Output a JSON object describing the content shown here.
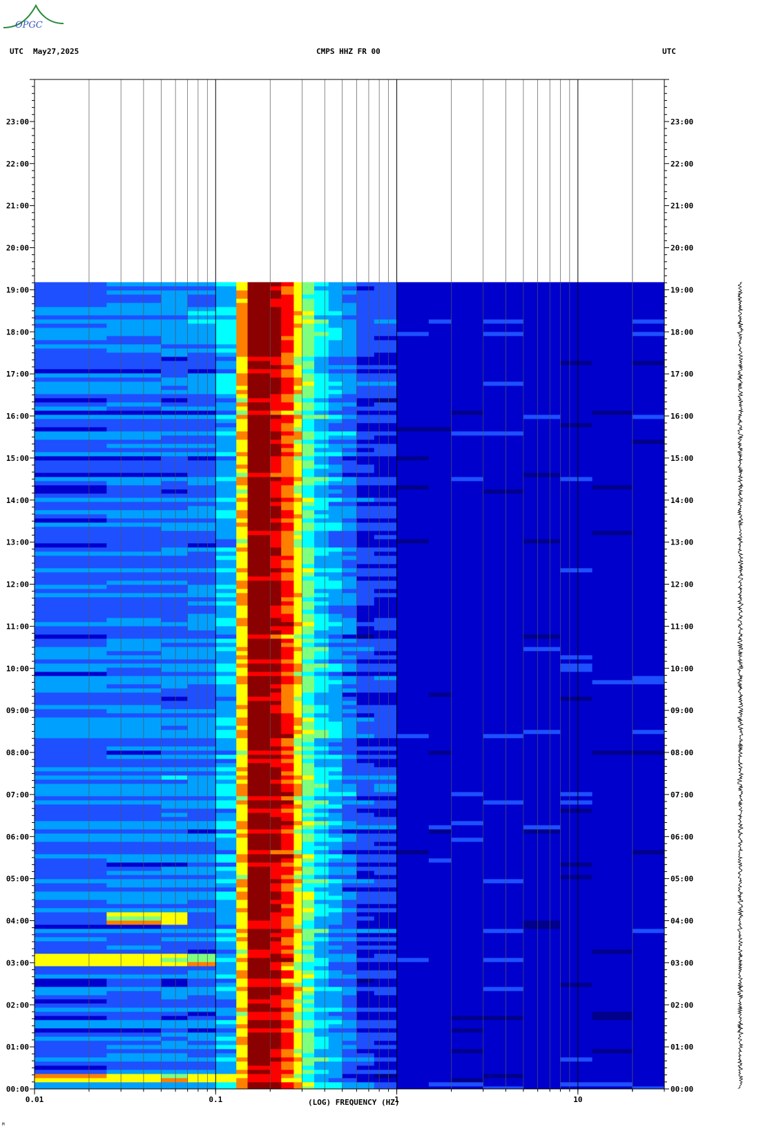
{
  "header": {
    "utc_left": "UTC",
    "date": "May27,2025",
    "title": "CMPS HHZ FR 00",
    "utc_right": "UTC"
  },
  "logo": {
    "text": "OPGC",
    "accent": "#2a8a3a",
    "text_color": "#3355bb"
  },
  "chart_data": {
    "type": "heatmap",
    "title": "CMPS HHZ FR 00",
    "xlabel": "(LOG) FREQUENCY (HZ)",
    "ylabel": "UTC",
    "x_scale": "log",
    "xlim": [
      0.01,
      30
    ],
    "ylim_hours": [
      0,
      24
    ],
    "data_end_hour": 19.18,
    "x_ticks": [
      {
        "value": 0.01,
        "label": "0.01"
      },
      {
        "value": 0.1,
        "label": "0.1"
      },
      {
        "value": 1,
        "label": "1"
      },
      {
        "value": 10,
        "label": "10"
      }
    ],
    "y_ticks": [
      "00:00",
      "01:00",
      "02:00",
      "03:00",
      "04:00",
      "05:00",
      "06:00",
      "07:00",
      "08:00",
      "09:00",
      "10:00",
      "11:00",
      "12:00",
      "13:00",
      "14:00",
      "15:00",
      "16:00",
      "17:00",
      "18:00",
      "19:00",
      "20:00",
      "21:00",
      "22:00",
      "23:00"
    ],
    "y_tick_hours": [
      0,
      1,
      2,
      3,
      4,
      5,
      6,
      7,
      8,
      9,
      10,
      11,
      12,
      13,
      14,
      15,
      16,
      17,
      18,
      19,
      20,
      21,
      22,
      23
    ],
    "grid": true,
    "colormap": [
      "#00008b",
      "#0000cd",
      "#1e50ff",
      "#00a0ff",
      "#00ffff",
      "#7fff7f",
      "#ffff00",
      "#ff8000",
      "#ff0000",
      "#8b0000"
    ],
    "microseism_band_hz": [
      0.15,
      0.3
    ],
    "events": [
      {
        "hour": 0.28,
        "min_hz": 0.01,
        "max_hz": 0.15
      },
      {
        "hour": 3.1,
        "min_hz": 0.01,
        "max_hz": 0.1
      },
      {
        "hour": 4.1,
        "min_hz": 0.025,
        "max_hz": 0.07
      }
    ],
    "seismogram_span_hours": [
      0,
      19.18
    ]
  },
  "footer": {
    "corner_mark": "M"
  }
}
